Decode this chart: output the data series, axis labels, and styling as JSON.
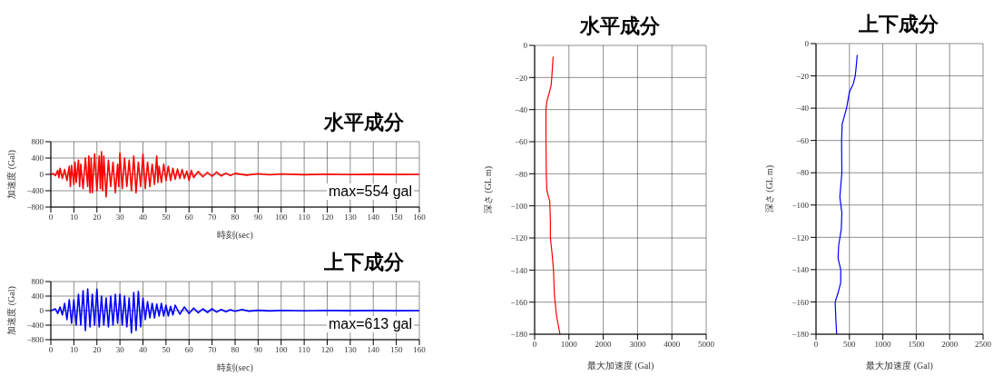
{
  "chart_data": [
    {
      "type": "line",
      "title": "水平成分",
      "xlabel": "時刻(sec)",
      "ylabel": "加速度 (Gal)",
      "annotations": [
        "max=554 gal"
      ],
      "xlim": [
        0,
        160
      ],
      "xticks": [
        0,
        10,
        20,
        30,
        40,
        50,
        60,
        70,
        80,
        90,
        100,
        110,
        120,
        130,
        140,
        150,
        160
      ],
      "ylim": [
        -800,
        800
      ],
      "yticks": [
        -800,
        -400,
        0,
        400,
        800
      ],
      "grid": true,
      "series": [
        {
          "color": "#ff0000",
          "x": [
            0,
            1,
            2,
            3,
            3.5,
            4,
            5,
            6,
            7,
            8,
            8.5,
            9,
            10,
            10.5,
            11,
            12,
            12.5,
            13,
            14,
            15,
            16,
            16.5,
            17,
            17.5,
            18,
            19,
            20,
            21,
            21.5,
            22,
            22.5,
            23,
            24,
            25,
            26,
            27,
            28,
            29,
            29.5,
            30,
            31,
            32,
            33,
            34,
            35,
            36,
            37,
            38,
            39,
            40,
            41,
            42,
            43,
            44,
            45,
            46,
            46.5,
            47,
            48,
            49,
            50,
            51,
            52,
            53,
            54,
            55,
            56,
            57,
            58,
            59,
            60,
            61,
            62,
            64,
            66,
            68,
            70,
            72,
            74,
            76,
            78,
            80,
            85,
            90,
            95,
            100,
            110,
            120,
            130,
            140,
            150,
            160
          ],
          "values": [
            0,
            20,
            -30,
            100,
            -80,
            150,
            -100,
            120,
            -150,
            200,
            -300,
            220,
            -250,
            300,
            -200,
            350,
            -300,
            250,
            -350,
            400,
            -300,
            450,
            -450,
            400,
            -450,
            500,
            -400,
            450,
            -350,
            554,
            -400,
            450,
            -550,
            350,
            -300,
            300,
            -450,
            250,
            -300,
            520,
            -350,
            400,
            -300,
            350,
            -400,
            450,
            -450,
            300,
            -300,
            500,
            -350,
            300,
            -300,
            250,
            -250,
            450,
            -200,
            200,
            -200,
            250,
            -150,
            200,
            -150,
            150,
            -120,
            130,
            -100,
            120,
            -100,
            80,
            -150,
            100,
            -80,
            70,
            -60,
            50,
            -50,
            60,
            -40,
            30,
            -30,
            25,
            -20,
            15,
            -10,
            10,
            -8,
            5,
            -5,
            3,
            -3,
            0
          ]
        }
      ]
    },
    {
      "type": "line",
      "title": "上下成分",
      "xlabel": "時刻(sec)",
      "ylabel": "加速度 (Gal)",
      "annotations": [
        "max=613 gal"
      ],
      "xlim": [
        0,
        160
      ],
      "xticks": [
        0,
        10,
        20,
        30,
        40,
        50,
        60,
        70,
        80,
        90,
        100,
        110,
        120,
        130,
        140,
        150,
        160
      ],
      "ylim": [
        -800,
        800
      ],
      "yticks": [
        -800,
        -400,
        0,
        400,
        800
      ],
      "grid": true,
      "series": [
        {
          "color": "#0000ff",
          "x": [
            0,
            2,
            3,
            4,
            5,
            6,
            7,
            8,
            9,
            10,
            11,
            12,
            13,
            14,
            15,
            16,
            17,
            18,
            19,
            20,
            21,
            22,
            23,
            24,
            25,
            26,
            27,
            28,
            29,
            30,
            31,
            32,
            33,
            34,
            35,
            36,
            37,
            38,
            39,
            40,
            41,
            42,
            43,
            44,
            45,
            46,
            47,
            48,
            49,
            50,
            51,
            52,
            53,
            54,
            56,
            58,
            60,
            62,
            64,
            66,
            68,
            70,
            72,
            74,
            76,
            78,
            80,
            83,
            86,
            90,
            95,
            100,
            110,
            120,
            130,
            140,
            150,
            160
          ],
          "values": [
            0,
            50,
            -80,
            100,
            -120,
            200,
            -250,
            300,
            -350,
            300,
            -400,
            450,
            -400,
            550,
            -550,
            600,
            -450,
            450,
            -400,
            590,
            -450,
            400,
            -400,
            350,
            -450,
            400,
            -400,
            450,
            -350,
            450,
            -400,
            400,
            -450,
            350,
            -613,
            500,
            -550,
            530,
            -450,
            350,
            -250,
            250,
            -200,
            200,
            -200,
            180,
            -150,
            200,
            -150,
            150,
            -150,
            120,
            -120,
            150,
            -100,
            100,
            -80,
            70,
            -60,
            50,
            -50,
            50,
            -40,
            30,
            -30,
            25,
            -20,
            30,
            -15,
            10,
            -10,
            8,
            -6,
            5,
            -4,
            3,
            -3,
            0
          ]
        }
      ]
    },
    {
      "type": "line",
      "title": "水平成分",
      "xlabel": "最大加速度 (Gal)",
      "ylabel": "深さ (GL m)",
      "xlim": [
        0,
        5000
      ],
      "xticks": [
        0,
        1000,
        2000,
        3000,
        4000,
        5000
      ],
      "ylim": [
        -180,
        0
      ],
      "yticks": [
        -180,
        -160,
        -140,
        -120,
        -100,
        -80,
        -60,
        -40,
        -20,
        0
      ],
      "grid": true,
      "series": [
        {
          "color": "#ff0000",
          "x": [
            540,
            500,
            480,
            420,
            355,
            330,
            330,
            340,
            355,
            400,
            440,
            460,
            460,
            510,
            550,
            575,
            620,
            650,
            740
          ],
          "values": [
            -7,
            -20,
            -25,
            -30,
            -35,
            -40,
            -60,
            -80,
            -90,
            -94,
            -97,
            -110,
            -120,
            -130,
            -140,
            -155,
            -165,
            -170,
            -180
          ]
        }
      ]
    },
    {
      "type": "line",
      "title": "上下成分",
      "xlabel": "最大加速度 (Gal)",
      "ylabel": "深さ (GL m)",
      "xlim": [
        0,
        2500
      ],
      "xticks": [
        0,
        500,
        1000,
        1500,
        2000,
        2500
      ],
      "ylim": [
        -180,
        0
      ],
      "yticks": [
        -180,
        -160,
        -140,
        -120,
        -100,
        -80,
        -60,
        -40,
        -20,
        0
      ],
      "grid": true,
      "series": [
        {
          "color": "#0000ff",
          "x": [
            617,
            600,
            587,
            557,
            500,
            457,
            391,
            383,
            387,
            357,
            387,
            378,
            339,
            330,
            370,
            370,
            326,
            287,
            296,
            309
          ],
          "values": [
            -7,
            -15,
            -20,
            -25,
            -30,
            -40,
            -50,
            -60,
            -80,
            -95,
            -105,
            -115,
            -125,
            -133,
            -140,
            -148,
            -155,
            -160,
            -170,
            -180
          ]
        }
      ]
    }
  ]
}
